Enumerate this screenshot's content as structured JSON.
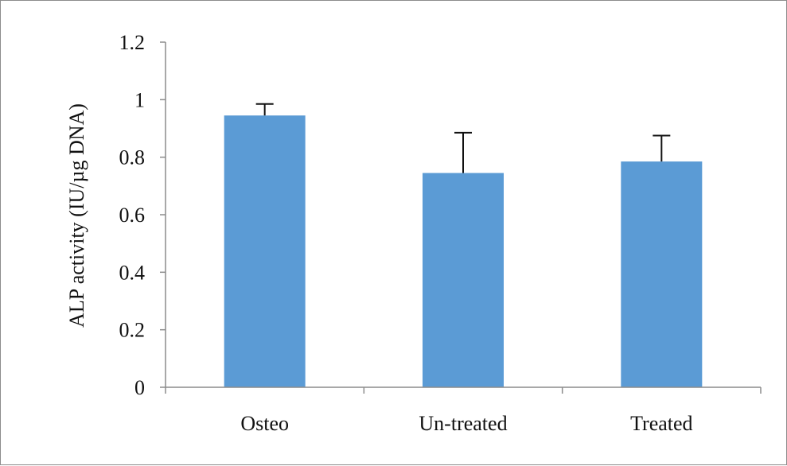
{
  "chart_data": {
    "type": "bar",
    "title": "",
    "xlabel": "",
    "ylabel": "ALP activity (IU/µg DNA)",
    "categories": [
      "Osteo",
      "Un-treated",
      "Treated"
    ],
    "series": [
      {
        "values": [
          0.945,
          0.745,
          0.785
        ],
        "error_plus": [
          0.04,
          0.14,
          0.09
        ]
      }
    ],
    "ylim": [
      0,
      1.2
    ],
    "yticks": [
      "0",
      "0.2",
      "0.4",
      "0.6",
      "0.8",
      "1",
      "1.2"
    ],
    "grid": false,
    "legend": "none",
    "bar_color": "#5b9bd5",
    "axis_color": "#8c8c8c",
    "errorbar_color": "#111111"
  }
}
